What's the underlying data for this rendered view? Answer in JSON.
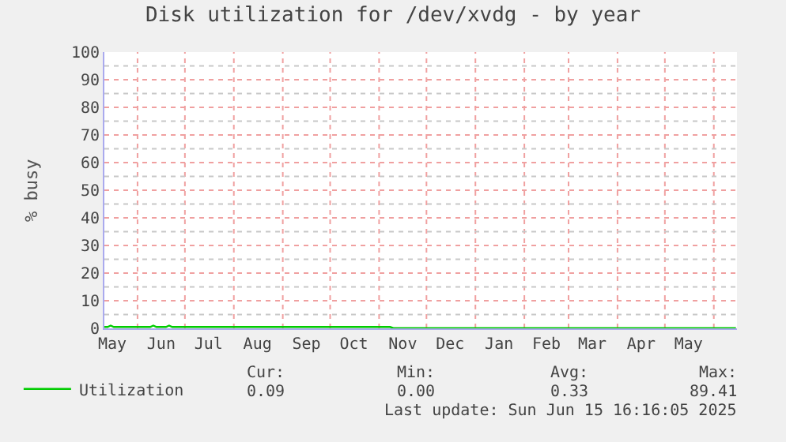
{
  "chart_data": {
    "type": "line",
    "title": "Disk utilization for /dev/xvdg - by year",
    "ylabel": "% busy",
    "x": [
      "2024-05-11",
      "2024-05-13",
      "2024-05-15",
      "2024-05-17",
      "2024-05-25",
      "2024-06-05",
      "2024-06-09",
      "2024-06-11",
      "2024-06-13",
      "2024-06-19",
      "2024-06-21",
      "2024-06-23",
      "2024-07-10",
      "2024-08-01",
      "2024-09-01",
      "2024-10-01",
      "2024-11-01",
      "2024-11-08",
      "2024-11-10",
      "2024-12-01",
      "2025-01-01",
      "2025-02-01",
      "2025-03-01",
      "2025-04-01",
      "2025-05-01",
      "2025-06-01",
      "2025-06-15"
    ],
    "series": [
      {
        "name": "Utilization",
        "color": "#00cc00",
        "values": [
          0.5,
          0.5,
          1,
          0.5,
          0.5,
          0.5,
          0.5,
          1,
          0.5,
          0.5,
          1,
          0.5,
          0.5,
          0.5,
          0.5,
          0.5,
          0.5,
          0.5,
          0.1,
          0.1,
          0.1,
          0.1,
          0.1,
          0.1,
          0.1,
          0.1,
          0.1
        ]
      }
    ],
    "xlim": [
      "2024-05-11",
      "2025-06-15T16:00"
    ],
    "xticks": [
      {
        "value": "2024-05-16",
        "label": "May"
      },
      {
        "value": "2024-06-16",
        "label": "Jun"
      },
      {
        "value": "2024-07-16",
        "label": "Jul"
      },
      {
        "value": "2024-08-16",
        "label": "Aug"
      },
      {
        "value": "2024-09-16",
        "label": "Sep"
      },
      {
        "value": "2024-10-16",
        "label": "Oct"
      },
      {
        "value": "2024-11-16",
        "label": "Nov"
      },
      {
        "value": "2024-12-16",
        "label": "Dec"
      },
      {
        "value": "2025-01-16",
        "label": "Jan"
      },
      {
        "value": "2025-02-15",
        "label": "Feb"
      },
      {
        "value": "2025-03-16",
        "label": "Mar"
      },
      {
        "value": "2025-04-16",
        "label": "Apr"
      },
      {
        "value": "2025-05-16",
        "label": "May"
      },
      {
        "value": "2024-06-01",
        "label": null
      },
      {
        "value": "2024-07-01",
        "label": null
      },
      {
        "value": "2024-08-01",
        "label": null
      },
      {
        "value": "2024-09-01",
        "label": null
      },
      {
        "value": "2024-10-01",
        "label": null
      },
      {
        "value": "2024-11-01",
        "label": null
      },
      {
        "value": "2024-12-01",
        "label": null
      },
      {
        "value": "2025-01-01",
        "label": null
      },
      {
        "value": "2025-02-01",
        "label": null
      },
      {
        "value": "2025-03-01",
        "label": null
      },
      {
        "value": "2025-04-01",
        "label": null
      },
      {
        "value": "2025-05-01",
        "label": null
      },
      {
        "value": "2025-06-01",
        "label": null
      }
    ],
    "ylim": [
      0,
      100
    ],
    "yticks": [
      0,
      10,
      20,
      30,
      40,
      50,
      60,
      70,
      80,
      90,
      100,
      {
        "value": 5,
        "label": null
      },
      {
        "value": 15,
        "label": null
      },
      {
        "value": 25,
        "label": null
      },
      {
        "value": 35,
        "label": null
      },
      {
        "value": 45,
        "label": null
      },
      {
        "value": 55,
        "label": null
      },
      {
        "value": 65,
        "label": null
      },
      {
        "value": 75,
        "label": null
      },
      {
        "value": 85,
        "label": null
      },
      {
        "value": 95,
        "label": null
      }
    ],
    "grid": true,
    "legend": "bottom left",
    "marker": "none",
    "line_style": "solid",
    "annotations": [
      "Cur:",
      "0.09",
      "Min:",
      "0.00",
      "Avg:",
      "0.33",
      "Max:",
      "89.41",
      "Last update: Sun Jun 15 16:16:05 2025"
    ]
  }
}
